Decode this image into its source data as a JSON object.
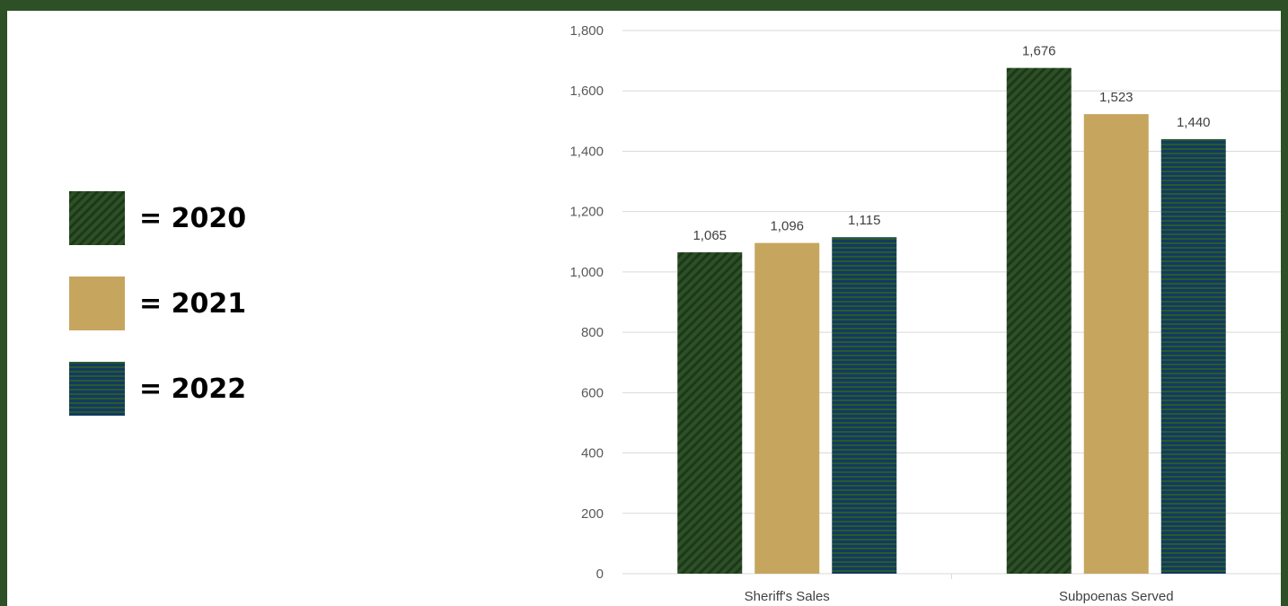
{
  "legend": {
    "items": [
      {
        "label": "= 2020",
        "color": "#2d5026",
        "pattern": "diagonal-stripes"
      },
      {
        "label": "= 2021",
        "color": "#c6a55e",
        "pattern": "solid"
      },
      {
        "label": "= 2022",
        "color": "#133a64",
        "pattern": "horizontal-stripes"
      }
    ]
  },
  "chart_data": {
    "type": "bar",
    "categories": [
      "Sheriff's Sales",
      "Subpoenas Served"
    ],
    "series": [
      {
        "values": [
          1065,
          1676
        ],
        "color": "#2d5026"
      },
      {
        "values": [
          1096,
          1523
        ],
        "color": "#c6a55e"
      },
      {
        "values": [
          1115,
          1440
        ],
        "color": "#133a64"
      }
    ],
    "data_labels": [
      [
        "1,065",
        "1,676"
      ],
      [
        "1,096",
        "1,523"
      ],
      [
        "1,115",
        "1,440"
      ]
    ],
    "ylim": [
      0,
      1800
    ],
    "yticks": [
      0,
      200,
      400,
      600,
      800,
      1000,
      1200,
      1400,
      1600,
      1800
    ],
    "ytick_labels": [
      "0",
      "200",
      "400",
      "600",
      "800",
      "1,000",
      "1,200",
      "1,400",
      "1,600",
      "1,800"
    ],
    "grid": true,
    "title": "",
    "xlabel": "",
    "ylabel": ""
  }
}
